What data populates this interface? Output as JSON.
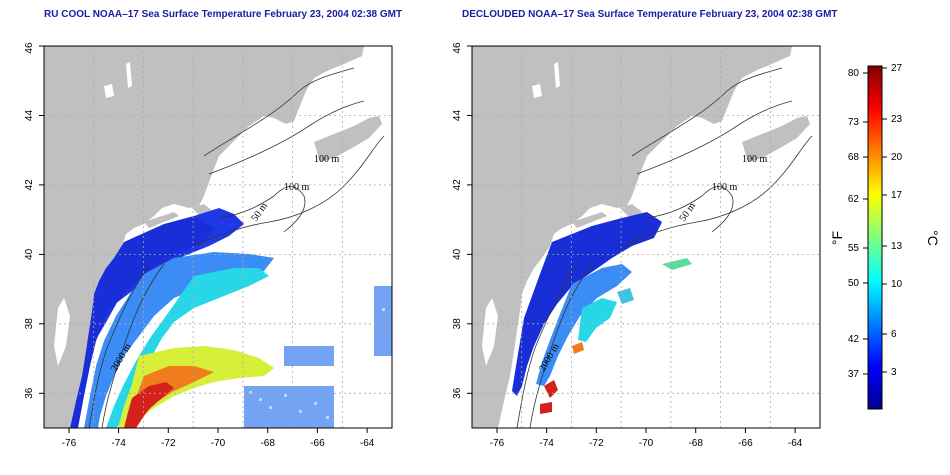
{
  "panels": [
    {
      "id": "left",
      "title": "RU COOL NOAA–17 Sea Surface Temperature February 23, 2004 02:38 GMT",
      "x_ticks": [
        "-76",
        "-74",
        "-72",
        "-70",
        "-68",
        "-66",
        "-64"
      ],
      "y_ticks": [
        "36",
        "38",
        "40",
        "42",
        "44",
        "46"
      ],
      "depth_labels": [
        "100 m",
        "100 m",
        "50 m",
        "2000 m"
      ]
    },
    {
      "id": "right",
      "title": "DECLOUDED NOAA–17 Sea Surface Temperature February 23, 2004 02:38 GMT",
      "x_ticks": [
        "-76",
        "-74",
        "-72",
        "-70",
        "-68",
        "-66",
        "-64"
      ],
      "y_ticks": [
        "36",
        "38",
        "40",
        "42",
        "44",
        "46"
      ],
      "depth_labels": [
        "100 m",
        "100 m",
        "50 m",
        "2000 m"
      ]
    }
  ],
  "colorbar": {
    "fahrenheit_unit": "°F",
    "celsius_unit": "°C",
    "fahrenheit_ticks": [
      "80",
      "73",
      "68",
      "62",
      "55",
      "50",
      "42",
      "37"
    ],
    "celsius_ticks": [
      "27",
      "23",
      "20",
      "17",
      "13",
      "10",
      "6",
      "3"
    ],
    "celsius_range": [
      0,
      27
    ],
    "colors": [
      "#00008f",
      "#0000ff",
      "#0080ff",
      "#00ffff",
      "#80ff80",
      "#ffff00",
      "#ff8000",
      "#ff0000",
      "#800000"
    ]
  },
  "map": {
    "lon_range": [
      -77,
      -63
    ],
    "lat_range": [
      35,
      46
    ],
    "land_color": "#c0c0c0",
    "ocean_color": "#ffffff",
    "grid": "dotted"
  }
}
